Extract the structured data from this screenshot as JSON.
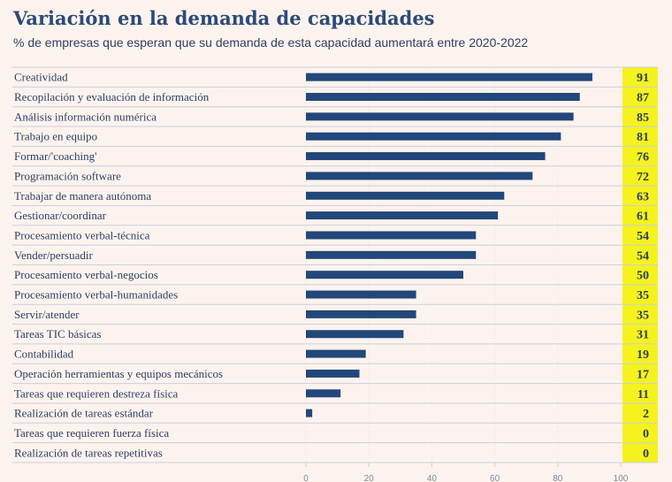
{
  "colors": {
    "background": "#fdf3ee",
    "bar": "#22477a",
    "highlight": "#f6f21e",
    "gridline": "#c9cfdc",
    "text": "#2b3f63",
    "title": "#2c4a78"
  },
  "chart_data": {
    "type": "bar",
    "orientation": "horizontal",
    "title": "Variación en la demanda de capacidades",
    "subtitle": "% de empresas que esperan que su demanda de esta capacidad aumentará entre 2020-2022",
    "xlabel": "",
    "ylabel": "",
    "xlim": [
      0,
      100
    ],
    "x_ticks": [
      0,
      20,
      40,
      60,
      80,
      100
    ],
    "categories": [
      "Creatividad",
      "Recopilación y evaluación de información",
      "Análisis información numérica",
      "Trabajo en equipo",
      "Formar/'coaching'",
      "Programación software",
      "Trabajar de manera autónoma",
      "Gestionar/coordinar",
      "Procesamiento verbal-técnica",
      "Vender/persuadir",
      "Procesamiento verbal-negocios",
      "Procesamiento verbal-humanidades",
      "Servir/atender",
      "Tareas TIC básicas",
      "Contabilidad",
      "Operación herramientas y equipos mecánicos",
      "Tareas que requieren destreza física",
      "Realización de tareas estándar",
      "Tareas que requieren fuerza física",
      "Realización de tareas repetitivas"
    ],
    "values": [
      91,
      87,
      85,
      81,
      76,
      72,
      63,
      61,
      54,
      54,
      50,
      35,
      35,
      31,
      19,
      17,
      11,
      2,
      0,
      0
    ]
  }
}
